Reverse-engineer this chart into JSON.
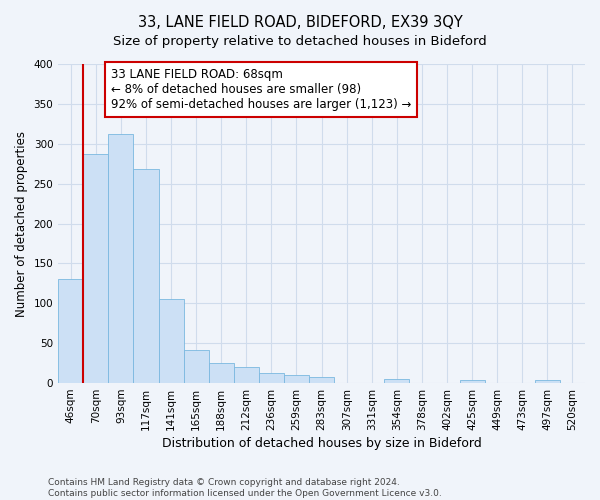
{
  "title": "33, LANE FIELD ROAD, BIDEFORD, EX39 3QY",
  "subtitle": "Size of property relative to detached houses in Bideford",
  "xlabel": "Distribution of detached houses by size in Bideford",
  "ylabel": "Number of detached properties",
  "bar_labels": [
    "46sqm",
    "70sqm",
    "93sqm",
    "117sqm",
    "141sqm",
    "165sqm",
    "188sqm",
    "212sqm",
    "236sqm",
    "259sqm",
    "283sqm",
    "307sqm",
    "331sqm",
    "354sqm",
    "378sqm",
    "402sqm",
    "425sqm",
    "449sqm",
    "473sqm",
    "497sqm",
    "520sqm"
  ],
  "bar_values": [
    130,
    287,
    312,
    268,
    106,
    41,
    25,
    20,
    13,
    10,
    8,
    0,
    0,
    5,
    0,
    0,
    4,
    0,
    0,
    4,
    0
  ],
  "bar_color": "#cce0f5",
  "bar_edge_color": "#7ab8e0",
  "vline_color": "#cc0000",
  "vline_pos": 0.5,
  "annotation_text_line1": "33 LANE FIELD ROAD: 68sqm",
  "annotation_text_line2": "← 8% of detached houses are smaller (98)",
  "annotation_text_line3": "92% of semi-detached houses are larger (1,123) →",
  "annotation_box_color": "#ffffff",
  "annotation_box_edge_color": "#cc0000",
  "ylim": [
    0,
    400
  ],
  "yticks": [
    0,
    50,
    100,
    150,
    200,
    250,
    300,
    350,
    400
  ],
  "footer_line1": "Contains HM Land Registry data © Crown copyright and database right 2024.",
  "footer_line2": "Contains public sector information licensed under the Open Government Licence v3.0.",
  "grid_color": "#d0dcec",
  "background_color": "#f0f4fa",
  "title_fontsize": 10.5,
  "subtitle_fontsize": 9.5,
  "xlabel_fontsize": 9,
  "ylabel_fontsize": 8.5,
  "tick_fontsize": 7.5,
  "annotation_fontsize": 8.5,
  "footer_fontsize": 6.5
}
